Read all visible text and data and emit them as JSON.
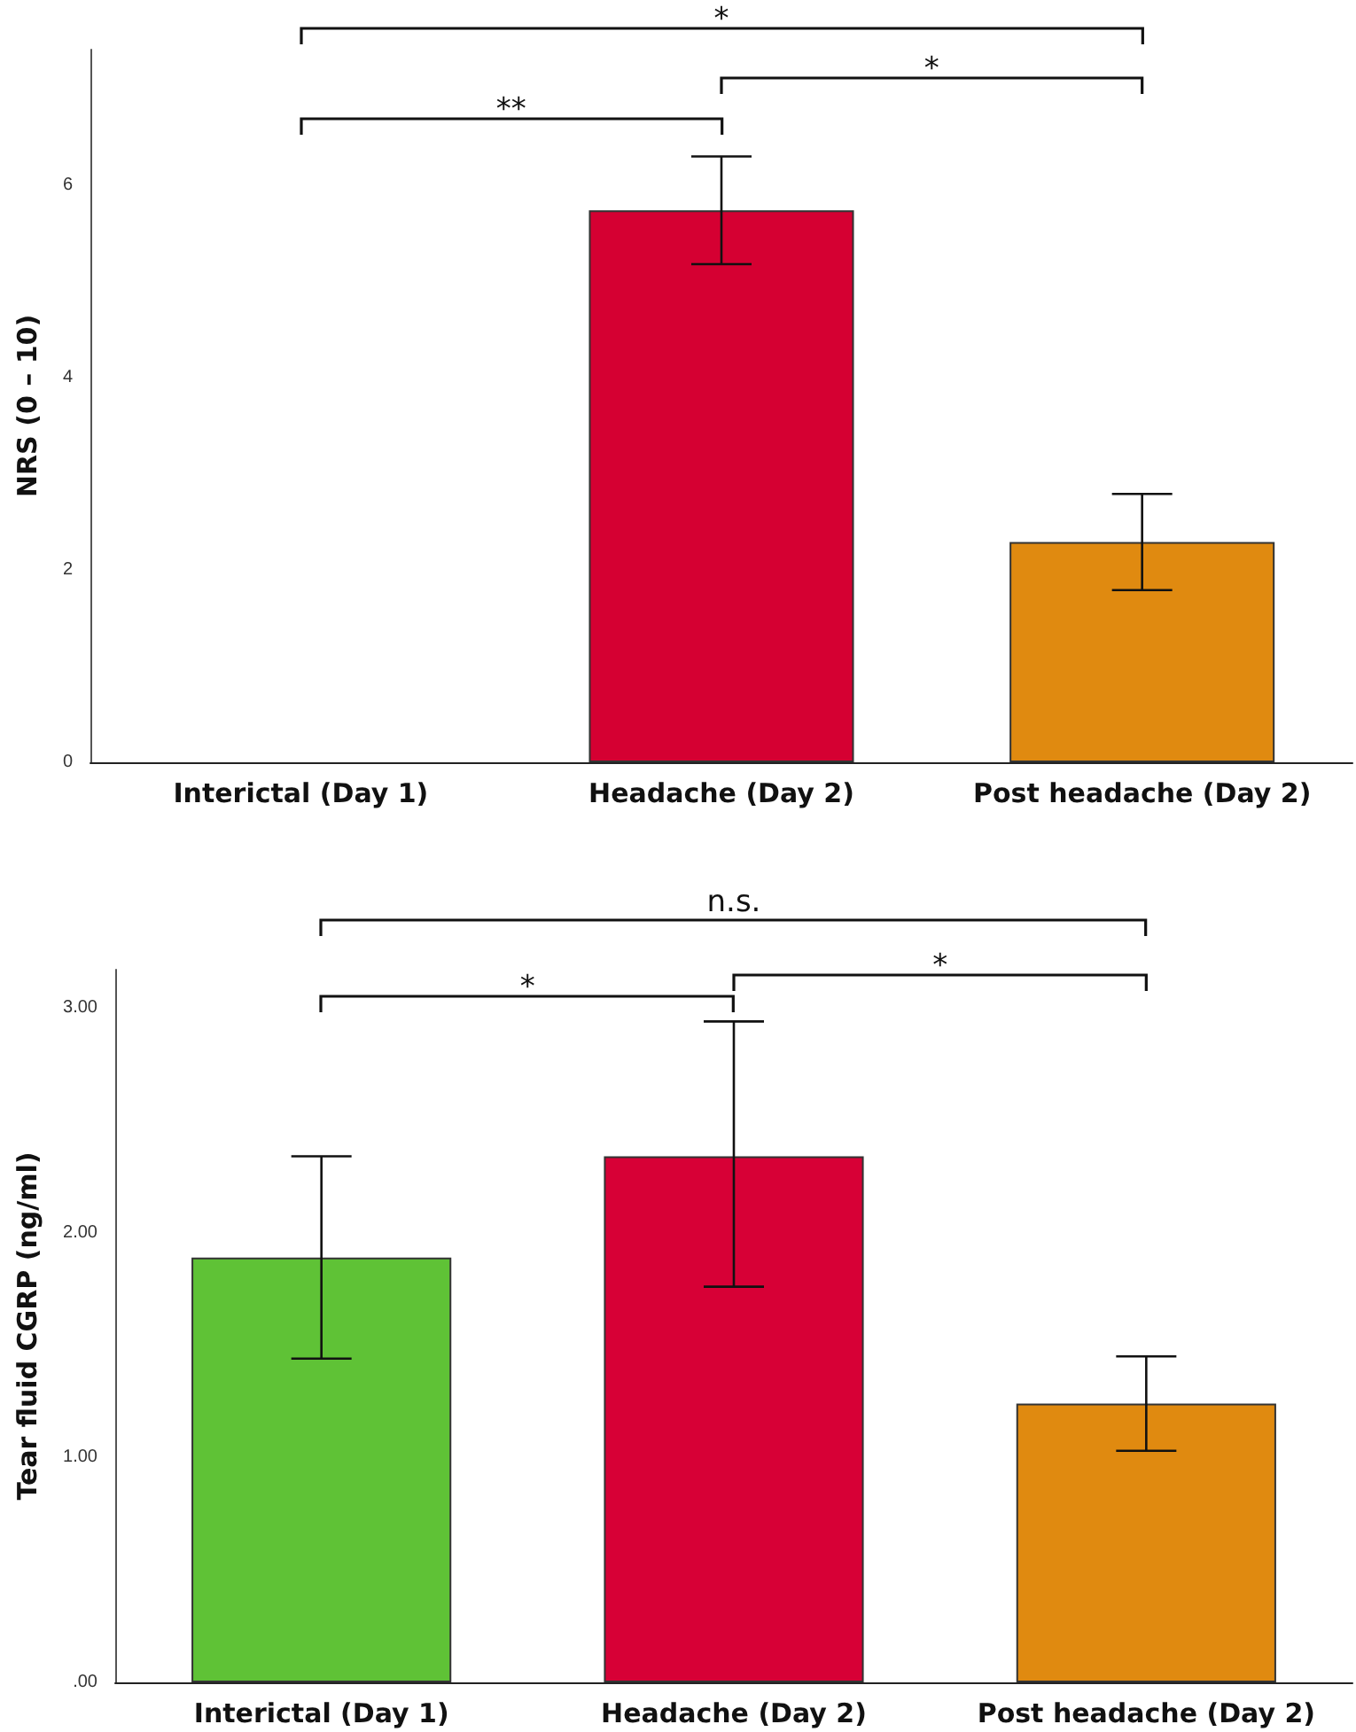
{
  "chart_data": [
    {
      "type": "bar",
      "ylabel": "NRS (0 – 10)",
      "categories": [
        "Interictal (Day 1)",
        "Headache (Day 2)",
        "Post headache (Day 2)"
      ],
      "values": [
        0,
        5.74,
        2.29
      ],
      "colors": [
        null,
        "#d50032",
        "#e08a10"
      ],
      "errors": [
        null,
        [
          5.18,
          6.3
        ],
        [
          1.79,
          2.79
        ]
      ],
      "ylim": [
        0,
        7.41
      ],
      "yticks": [
        0,
        2,
        4,
        6
      ],
      "grid": false,
      "annotations": [
        "*",
        "**",
        "*"
      ]
    },
    {
      "type": "bar",
      "ylabel": "Tear fluid CGRP (ng/ml)",
      "categories": [
        "Interictal (Day 1)",
        "Headache (Day 2)",
        "Post headache (Day 2)"
      ],
      "values": [
        1.89,
        2.34,
        1.24
      ],
      "colors": [
        "#5fc236",
        "#d70036",
        "#e08a10"
      ],
      "errors": [
        [
          1.44,
          2.34
        ],
        [
          1.76,
          2.94
        ],
        [
          1.03,
          1.45
        ]
      ],
      "ylim": [
        0,
        3.17
      ],
      "yticks": [
        {
          "value": 0,
          "label": ".00"
        },
        {
          "value": 1,
          "label": "1.00"
        },
        {
          "value": 2,
          "label": "2.00"
        },
        {
          "value": 3,
          "label": "3.00"
        }
      ],
      "grid": false,
      "annotations": [
        "n.s.",
        "*",
        "*"
      ]
    }
  ]
}
